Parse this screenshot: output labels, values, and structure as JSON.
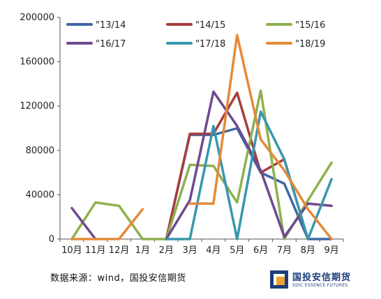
{
  "chart_data": {
    "type": "line",
    "categories": [
      "10月",
      "11月",
      "12月",
      "1月",
      "2月",
      "3月",
      "4月",
      "5月",
      "6月",
      "7月",
      "8月",
      "9月"
    ],
    "ylim": [
      0,
      200000
    ],
    "yticks": [
      0,
      40000,
      80000,
      120000,
      160000,
      200000
    ],
    "grid": false,
    "legend_position": "top",
    "series": [
      {
        "name": "\"13/14",
        "color": "#3f67a4",
        "values": [
          null,
          null,
          null,
          null,
          0,
          94000,
          94000,
          100000,
          60000,
          50000,
          0,
          0
        ]
      },
      {
        "name": "\"14/15",
        "color": "#a63e3d",
        "values": [
          null,
          null,
          null,
          null,
          0,
          95000,
          95000,
          132000,
          60000,
          72000,
          0,
          null
        ]
      },
      {
        "name": "\"15/16",
        "color": "#8fb04e",
        "values": [
          0,
          33000,
          30000,
          0,
          0,
          67000,
          66000,
          33000,
          134000,
          0,
          35000,
          69000
        ]
      },
      {
        "name": "\"16/17",
        "color": "#6e4a8e",
        "values": [
          28000,
          0,
          null,
          null,
          0,
          35000,
          133000,
          102000,
          62000,
          2000,
          32000,
          30000
        ]
      },
      {
        "name": "\"17/18",
        "color": "#3997ac",
        "values": [
          null,
          null,
          null,
          null,
          0,
          0,
          102000,
          0,
          115000,
          72000,
          0,
          54000
        ]
      },
      {
        "name": "\"18/19",
        "color": "#e48a3a",
        "values": [
          0,
          0,
          0,
          27000,
          null,
          32000,
          32000,
          184000,
          90000,
          62000,
          27000,
          0
        ]
      }
    ]
  },
  "footer": {
    "source": "数据来源：wind，国投安信期货"
  },
  "logo": {
    "name": "国投安信期货",
    "subtitle": "SDIC ESSENCE FUTURES",
    "color": "#1b3d7a",
    "accent": "#f0a030"
  }
}
